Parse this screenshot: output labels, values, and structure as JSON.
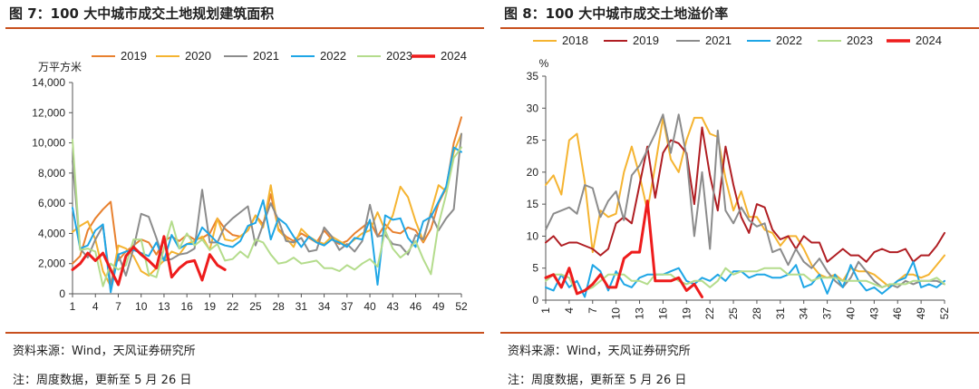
{
  "left": {
    "title": "图 7：100 大中城市成交土地规划建筑面积",
    "source": "资料来源：Wind，天风证券研究所",
    "note": "注：周度数据，更新至 5 月 26 日"
  },
  "right": {
    "title": "图 8：100 大中城市成交土地溢价率",
    "source": "资料来源：Wind，天风证券研究所",
    "note": "注：周度数据，更新至 5 月 26 日"
  },
  "colors": {
    "2018": "#f5b431",
    "2019": "#e8812f",
    "2019r": "#b01e23",
    "2020": "#f5b431",
    "2021": "#8c8c8c",
    "2022": "#1ea6e6",
    "2023": "#b4dc8c",
    "2024": "#ee1c1c",
    "accent": "#c8501e"
  },
  "chart_data": [
    {
      "type": "line",
      "unit_label": "万平方米",
      "ylim": [
        0,
        14000
      ],
      "yticks": [
        "0",
        "2,000",
        "4,000",
        "6,000",
        "8,000",
        "10,000",
        "12,000",
        "14,000"
      ],
      "xticks": [
        "1",
        "4",
        "7",
        "10",
        "13",
        "16",
        "19",
        "22",
        "25",
        "28",
        "31",
        "34",
        "37",
        "40",
        "43",
        "46",
        "49",
        "52"
      ],
      "legend": [
        "2019",
        "2020",
        "2021",
        "2022",
        "2023",
        "2024"
      ],
      "legend_position": "top",
      "series": [
        {
          "name": "2019",
          "color_key": "2019",
          "width": 2,
          "values": [
            2000,
            2500,
            4200,
            5000,
            5600,
            6100,
            2200,
            2800,
            3200,
            3600,
            3400,
            2600,
            3500,
            3800,
            3500,
            3900,
            3600,
            3700,
            4000,
            5000,
            4300,
            3900,
            3800,
            4200,
            5200,
            4600,
            6600,
            4300,
            3800,
            3500,
            4000,
            3700,
            3400,
            4200,
            3600,
            3300,
            3500,
            4000,
            4400,
            4800,
            3800,
            4600,
            4100,
            4000,
            4400,
            4200,
            3400,
            4300,
            6000,
            7000,
            10000,
            11700
          ]
        },
        {
          "name": "2020",
          "color_key": "2020",
          "width": 2,
          "values": [
            4100,
            4500,
            4800,
            3600,
            1500,
            500,
            3200,
            3000,
            2500,
            1500,
            1200,
            1700,
            2200,
            2800,
            2600,
            3300,
            3500,
            3800,
            2900,
            5000,
            3600,
            3500,
            3800,
            4200,
            5200,
            4400,
            7200,
            4200,
            3700,
            3100,
            4300,
            3800,
            3500,
            3300,
            3800,
            3500,
            3200,
            3600,
            4000,
            4200,
            5400,
            4200,
            5200,
            7100,
            6400,
            4800,
            3500,
            5400,
            7200,
            6800,
            9400,
            10600
          ]
        },
        {
          "name": "2021",
          "color_key": "2021",
          "width": 2,
          "values": [
            8800,
            3000,
            2400,
            3600,
            4500,
            600,
            2600,
            1200,
            3000,
            5300,
            5100,
            3700,
            2200,
            2300,
            2600,
            2700,
            3000,
            6900,
            3400,
            3400,
            4500,
            5000,
            5400,
            5800,
            3200,
            4600,
            6000,
            4900,
            3500,
            3400,
            3700,
            2800,
            2900,
            4400,
            3800,
            2900,
            3300,
            2800,
            3500,
            5900,
            3800,
            3900,
            3300,
            3200,
            2600,
            3900,
            3600,
            5300,
            4200,
            5000,
            5600,
            10600
          ]
        },
        {
          "name": "2022",
          "color_key": "2022",
          "width": 2,
          "values": [
            5700,
            3000,
            3200,
            4200,
            4600,
            100,
            2600,
            2800,
            2900,
            2700,
            2500,
            3400,
            2200,
            3900,
            3000,
            3300,
            3300,
            4400,
            3900,
            3400,
            3200,
            3100,
            3500,
            4500,
            4700,
            6200,
            3600,
            5000,
            4600,
            3800,
            3100,
            3800,
            3400,
            3200,
            3600,
            3400,
            3100,
            3700,
            3600,
            4900,
            600,
            5200,
            4900,
            5000,
            3700,
            3100,
            4800,
            5100,
            6100,
            7100,
            9700,
            9400
          ]
        },
        {
          "name": "2023",
          "color_key": "2023",
          "width": 2,
          "values": [
            10200,
            2900,
            3000,
            2800,
            500,
            2000,
            1600,
            1900,
            3600,
            3600,
            1300,
            1100,
            3000,
            4800,
            3000,
            4000,
            3200,
            3600,
            2900,
            3300,
            2200,
            2300,
            2800,
            2400,
            3600,
            3400,
            2600,
            2000,
            2100,
            2400,
            2000,
            2100,
            2200,
            1700,
            1700,
            1500,
            1900,
            1600,
            2000,
            2300,
            1800,
            4200,
            3000,
            2400,
            2800,
            3500,
            2300,
            1300,
            4600,
            6600,
            9000,
            9700
          ]
        },
        {
          "name": "2024",
          "color_key": "2024",
          "width": 3,
          "values": [
            1600,
            2000,
            2700,
            2200,
            2700,
            1600,
            600,
            2500,
            3100,
            2600,
            2200,
            1700,
            3800,
            1100,
            1700,
            2100,
            2200,
            900,
            2600,
            1900,
            1600
          ]
        }
      ]
    },
    {
      "type": "line",
      "unit_label": "%",
      "ylim": [
        0,
        35
      ],
      "yticks": [
        "0",
        "5",
        "10",
        "15",
        "20",
        "25",
        "30",
        "35"
      ],
      "xticks": [
        "1",
        "4",
        "7",
        "10",
        "13",
        "16",
        "19",
        "22",
        "25",
        "28",
        "31",
        "34",
        "37",
        "40",
        "43",
        "46",
        "49",
        "52"
      ],
      "legend": [
        "2018",
        "2019",
        "2021",
        "2022",
        "2023",
        "2024"
      ],
      "legend_position": "top",
      "series": [
        {
          "name": "2018",
          "color_key": "2018",
          "width": 2,
          "values": [
            18,
            19.5,
            16.5,
            25,
            26,
            18.5,
            7.5,
            14,
            13,
            13.5,
            20,
            24,
            19.5,
            14,
            21,
            28.5,
            22,
            20,
            25,
            28.5,
            28.5,
            26,
            25.5,
            19,
            14,
            17,
            13,
            13,
            11,
            10.5,
            8.5,
            10,
            10,
            8,
            5.5,
            4,
            3.5,
            4,
            3,
            5,
            4.5,
            4.5,
            4,
            3,
            2,
            3,
            4,
            4,
            3.5,
            4,
            5.5,
            7
          ]
        },
        {
          "name": "2019",
          "color_key": "2019r",
          "width": 2,
          "values": [
            9,
            10,
            8.5,
            9,
            9,
            8.5,
            8,
            7,
            8,
            12,
            13,
            12,
            18,
            24,
            16,
            23,
            25,
            24.5,
            23,
            15,
            27,
            19.5,
            14,
            24,
            18,
            13,
            10.5,
            15,
            14.5,
            11,
            9.5,
            10,
            8,
            10,
            9,
            9,
            6,
            7,
            8,
            7,
            7,
            6,
            7.5,
            8,
            7.5,
            7.5,
            8,
            6,
            7,
            7,
            8.5,
            10.5
          ]
        },
        {
          "name": "2021",
          "color_key": "2021",
          "width": 2,
          "values": [
            11,
            13.5,
            14,
            14.5,
            13.5,
            18,
            17.5,
            13,
            15.5,
            17,
            12.5,
            19.5,
            21,
            23.5,
            26,
            29,
            23,
            29,
            22.5,
            10,
            20,
            8,
            26.5,
            14,
            12,
            14.5,
            12.5,
            11.5,
            12,
            7.5,
            8,
            5.5,
            8,
            6,
            5,
            6.5,
            4.5,
            3,
            2,
            3.5,
            6,
            4.5,
            3,
            2,
            2.5,
            2,
            3,
            2.5,
            3,
            3,
            3,
            2.5
          ]
        },
        {
          "name": "2022",
          "color_key": "2022",
          "width": 2,
          "values": [
            2,
            1.5,
            4,
            2,
            3,
            0.5,
            5.5,
            4.5,
            1.5,
            4.5,
            2.5,
            2,
            3.5,
            4,
            4,
            4,
            4.5,
            5,
            3,
            2.5,
            3.5,
            3,
            4,
            3,
            4.5,
            4.5,
            3.5,
            4,
            4,
            3.5,
            3.5,
            4,
            5.5,
            2,
            2.5,
            4,
            1,
            4,
            2,
            5.5,
            3,
            1.5,
            2,
            1,
            2,
            3,
            3.5,
            6,
            2,
            2.5,
            2,
            3
          ]
        },
        {
          "name": "2023",
          "color_key": "2023",
          "width": 2,
          "values": [
            3,
            4,
            4,
            3.5,
            1,
            1.5,
            2,
            3,
            4,
            4,
            4,
            3,
            3,
            2.5,
            4,
            4,
            4,
            3,
            2.5,
            3,
            3,
            2,
            3,
            5,
            4,
            4.5,
            4.5,
            4.5,
            5,
            5,
            5,
            4,
            4,
            4,
            3,
            3.5,
            3.5,
            3.5,
            3,
            3,
            3,
            3,
            2.5,
            2,
            2.5,
            2.5,
            2.5,
            3,
            3,
            3,
            3.5,
            2.5
          ]
        },
        {
          "name": "2024",
          "color_key": "2024",
          "width": 3,
          "values": [
            3.5,
            4,
            2,
            5,
            1,
            1.5,
            2.5,
            4,
            2,
            2,
            6.5,
            7.5,
            7.5,
            15.5,
            3,
            3,
            3,
            3.5,
            1.5,
            2.5,
            0.5
          ]
        }
      ]
    }
  ]
}
